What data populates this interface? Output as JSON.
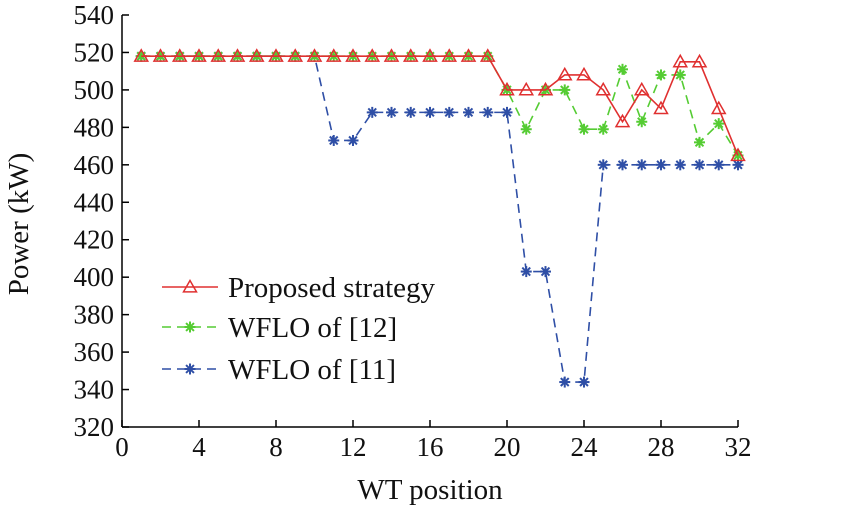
{
  "chart_data": {
    "type": "line",
    "title": "",
    "xlabel": "WT position",
    "ylabel": "Power (kW)",
    "xlim": [
      0,
      32
    ],
    "ylim": [
      320,
      540
    ],
    "x_ticks": [
      0,
      4,
      8,
      12,
      16,
      20,
      24,
      28,
      32
    ],
    "y_ticks": [
      320,
      340,
      360,
      380,
      400,
      420,
      440,
      460,
      480,
      500,
      520,
      540
    ],
    "grid": false,
    "legend_position": "lower-left",
    "x": [
      1,
      2,
      3,
      4,
      5,
      6,
      7,
      8,
      9,
      10,
      11,
      12,
      13,
      14,
      15,
      16,
      17,
      18,
      19,
      20,
      21,
      22,
      23,
      24,
      25,
      26,
      27,
      28,
      29,
      30,
      31,
      32
    ],
    "series": [
      {
        "name": "Proposed strategy",
        "color": "#e03030",
        "marker": "triangle",
        "dash": "solid",
        "values": [
          518,
          518,
          518,
          518,
          518,
          518,
          518,
          518,
          518,
          518,
          518,
          518,
          518,
          518,
          518,
          518,
          518,
          518,
          518,
          500,
          500,
          500,
          508,
          508,
          500,
          483,
          500,
          490,
          515,
          515,
          490,
          465
        ]
      },
      {
        "name": "WFLO of [12]",
        "color": "#55cc33",
        "marker": "asterisk",
        "dash": "dashed",
        "values": [
          518,
          518,
          518,
          518,
          518,
          518,
          518,
          518,
          518,
          518,
          518,
          518,
          518,
          518,
          518,
          518,
          518,
          518,
          518,
          500,
          479,
          500,
          500,
          479,
          479,
          511,
          483,
          508,
          508,
          472,
          482,
          465
        ]
      },
      {
        "name": "WFLO of [11]",
        "color": "#2f4fa6",
        "marker": "asterisk",
        "dash": "dashed",
        "values": [
          518,
          518,
          518,
          518,
          518,
          518,
          518,
          518,
          518,
          518,
          473,
          473,
          488,
          488,
          488,
          488,
          488,
          488,
          488,
          488,
          403,
          403,
          344,
          344,
          460,
          460,
          460,
          460,
          460,
          460,
          460,
          460
        ]
      }
    ]
  }
}
